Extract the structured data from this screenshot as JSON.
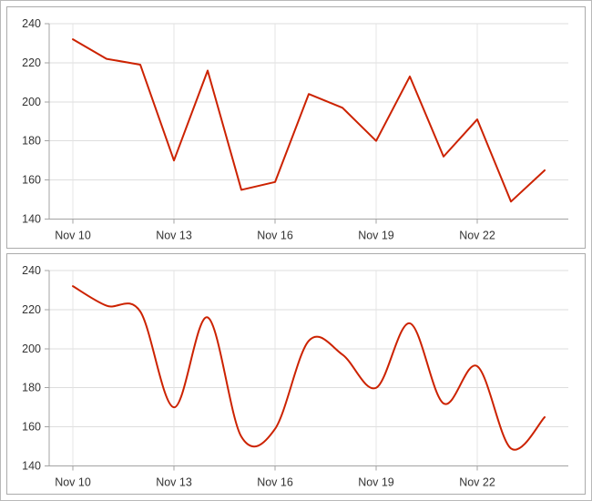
{
  "chart_data": [
    {
      "type": "line",
      "title": "",
      "xlabel": "",
      "ylabel": "",
      "x": [
        "Nov 10",
        "Nov 11",
        "Nov 12",
        "Nov 13",
        "Nov 14",
        "Nov 15",
        "Nov 16",
        "Nov 17",
        "Nov 18",
        "Nov 19",
        "Nov 20",
        "Nov 21",
        "Nov 22",
        "Nov 23",
        "Nov 24"
      ],
      "values": [
        232,
        222,
        219,
        170,
        216,
        155,
        159,
        204,
        197,
        180,
        213,
        172,
        191,
        149,
        165
      ],
      "ylim": [
        140,
        240
      ],
      "yticks": [
        140,
        160,
        180,
        200,
        220,
        240
      ],
      "xtick_indices": [
        0,
        3,
        6,
        9,
        12
      ],
      "xtick_labels": [
        "Nov 10",
        "Nov 13",
        "Nov 16",
        "Nov 19",
        "Nov 22"
      ],
      "grid": true,
      "legend": "none",
      "line_color": "#cc2200"
    },
    {
      "type": "spline",
      "title": "",
      "xlabel": "",
      "ylabel": "",
      "x": [
        "Nov 10",
        "Nov 11",
        "Nov 12",
        "Nov 13",
        "Nov 14",
        "Nov 15",
        "Nov 16",
        "Nov 17",
        "Nov 18",
        "Nov 19",
        "Nov 20",
        "Nov 21",
        "Nov 22",
        "Nov 23",
        "Nov 24"
      ],
      "values": [
        232,
        222,
        219,
        170,
        216,
        155,
        159,
        204,
        197,
        180,
        213,
        172,
        191,
        149,
        165
      ],
      "ylim": [
        140,
        240
      ],
      "yticks": [
        140,
        160,
        180,
        200,
        220,
        240
      ],
      "xtick_indices": [
        0,
        3,
        6,
        9,
        12
      ],
      "xtick_labels": [
        "Nov 10",
        "Nov 13",
        "Nov 16",
        "Nov 19",
        "Nov 22"
      ],
      "grid": true,
      "legend": "none",
      "line_color": "#cc2200"
    }
  ]
}
